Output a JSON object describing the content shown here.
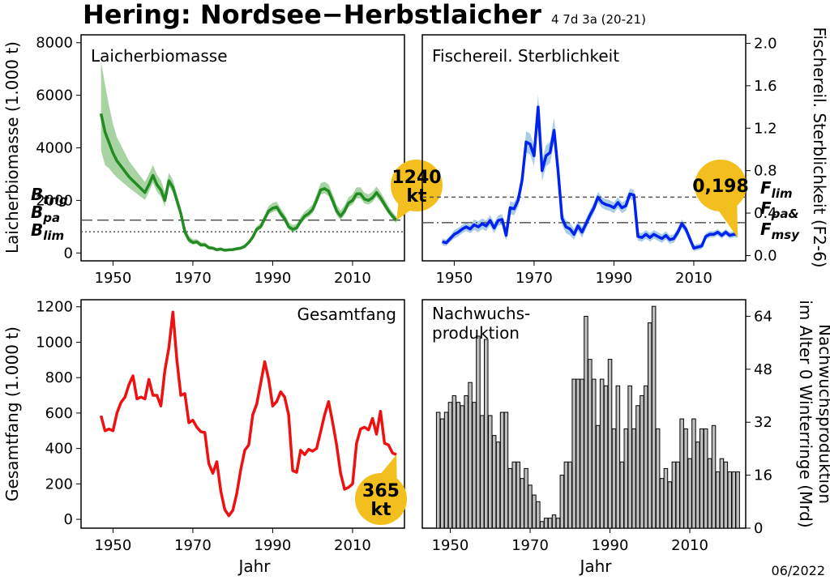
{
  "title": "Hering: Nordsee−Herbstlaicher",
  "subtitle": "4 7d 3a (20-21)",
  "date": "06/2022",
  "colors": {
    "ssb": "#228B22",
    "ssb_band": "#a8d4a3",
    "f": "#0022ee",
    "f_band": "#a9cde6",
    "catch": "#ee1111",
    "rec": "#bebebe",
    "bubble": "#f3bf1f"
  },
  "chart_data": [
    {
      "type": "area",
      "panel_label": "Laicherbiomasse",
      "ylabel": "Laicherbiomasse (1.000 t)",
      "xlim": [
        1942,
        2023
      ],
      "ylim": [
        -300,
        8300
      ],
      "xticks": [
        1950,
        1970,
        1990,
        2010
      ],
      "yticks": [
        0,
        2000,
        4000,
        6000,
        8000
      ],
      "ytick_labels": [
        "0",
        "2000",
        "4000",
        "6000",
        "8000"
      ],
      "x": [
        1947,
        1948,
        1949,
        1950,
        1951,
        1952,
        1953,
        1954,
        1955,
        1956,
        1957,
        1958,
        1959,
        1960,
        1961,
        1962,
        1963,
        1964,
        1965,
        1966,
        1967,
        1968,
        1969,
        1970,
        1971,
        1972,
        1973,
        1974,
        1975,
        1976,
        1977,
        1978,
        1979,
        1980,
        1981,
        1982,
        1983,
        1984,
        1985,
        1986,
        1987,
        1988,
        1989,
        1990,
        1991,
        1992,
        1993,
        1994,
        1995,
        1996,
        1997,
        1998,
        1999,
        2000,
        2001,
        2002,
        2003,
        2004,
        2005,
        2006,
        2007,
        2008,
        2009,
        2010,
        2011,
        2012,
        2013,
        2014,
        2015,
        2016,
        2017,
        2018,
        2019,
        2020,
        2021
      ],
      "y": [
        5300,
        4600,
        4200,
        3800,
        3500,
        3300,
        3100,
        2900,
        2750,
        2600,
        2450,
        2300,
        2600,
        2950,
        2600,
        2400,
        2000,
        2750,
        2500,
        2000,
        1500,
        800,
        500,
        400,
        420,
        300,
        310,
        200,
        180,
        120,
        150,
        100,
        120,
        130,
        160,
        180,
        250,
        400,
        600,
        900,
        1000,
        1300,
        1600,
        1700,
        1750,
        1500,
        1300,
        1000,
        900,
        950,
        1200,
        1400,
        1500,
        1650,
        2000,
        2400,
        2450,
        2350,
        2000,
        1600,
        1400,
        1600,
        1900,
        2000,
        2250,
        2250,
        2050,
        2000,
        2100,
        2300,
        2100,
        1850,
        1600,
        1400,
        1240
      ],
      "band_halfwidth": [
        2000,
        1800,
        1400,
        1100,
        900,
        800,
        700,
        600,
        550,
        500,
        450,
        400,
        400,
        400,
        380,
        360,
        330,
        300,
        280,
        250,
        220,
        180,
        150,
        120,
        110,
        100,
        90,
        80,
        70,
        60,
        60,
        50,
        50,
        50,
        60,
        70,
        80,
        90,
        100,
        120,
        140,
        160,
        180,
        200,
        200,
        190,
        180,
        170,
        160,
        160,
        170,
        180,
        190,
        200,
        220,
        250,
        260,
        260,
        250,
        230,
        210,
        210,
        220,
        230,
        250,
        250,
        240,
        230,
        230,
        230,
        220,
        200,
        180,
        160,
        140
      ],
      "reference_lines": [
        {
          "label_base": "B",
          "label_sub": "trig",
          "value": 1250,
          "style": "longdash"
        },
        {
          "label_base": "B",
          "label_sub": "pa",
          "value": 1250,
          "style": "dash"
        },
        {
          "label_base": "B",
          "label_sub": "lim",
          "value": 900,
          "style": "dot"
        }
      ],
      "callout": [
        "1240",
        "kt"
      ]
    },
    {
      "type": "area",
      "panel_label": "Fischereil. Sterblichkeit",
      "ylabel": "Fischereil. Sterblichkeit (F2-6)",
      "xlim": [
        1942,
        2023
      ],
      "ylim": [
        -0.05,
        2.08
      ],
      "xticks": [
        1950,
        1970,
        1990,
        2010
      ],
      "yticks": [
        0,
        0.4,
        0.8,
        1.2,
        1.6,
        2.0
      ],
      "ytick_labels": [
        "0.0",
        "0.4",
        "0.8",
        "1.2",
        "1.6",
        "2.0"
      ],
      "x": [
        1947,
        1948,
        1949,
        1950,
        1951,
        1952,
        1953,
        1954,
        1955,
        1956,
        1957,
        1958,
        1959,
        1960,
        1961,
        1962,
        1963,
        1964,
        1965,
        1966,
        1967,
        1968,
        1969,
        1970,
        1971,
        1972,
        1973,
        1974,
        1975,
        1976,
        1977,
        1978,
        1979,
        1980,
        1981,
        1982,
        1983,
        1984,
        1985,
        1986,
        1987,
        1988,
        1989,
        1990,
        1991,
        1992,
        1993,
        1994,
        1995,
        1996,
        1997,
        1998,
        1999,
        2000,
        2001,
        2002,
        2003,
        2004,
        2005,
        2006,
        2007,
        2008,
        2009,
        2010,
        2011,
        2012,
        2013,
        2014,
        2015,
        2016,
        2017,
        2018,
        2019,
        2020,
        2021
      ],
      "y": [
        0.13,
        0.12,
        0.16,
        0.2,
        0.22,
        0.25,
        0.27,
        0.25,
        0.29,
        0.27,
        0.3,
        0.28,
        0.33,
        0.26,
        0.33,
        0.34,
        0.19,
        0.45,
        0.44,
        0.52,
        0.71,
        1.07,
        1.05,
        0.94,
        1.4,
        0.8,
        0.94,
        0.97,
        1.18,
        0.8,
        0.35,
        0.27,
        0.25,
        0.2,
        0.28,
        0.22,
        0.3,
        0.38,
        0.45,
        0.55,
        0.5,
        0.48,
        0.47,
        0.45,
        0.5,
        0.45,
        0.47,
        0.58,
        0.57,
        0.18,
        0.17,
        0.2,
        0.17,
        0.2,
        0.18,
        0.16,
        0.19,
        0.15,
        0.16,
        0.22,
        0.3,
        0.25,
        0.16,
        0.07,
        0.08,
        0.09,
        0.18,
        0.2,
        0.2,
        0.22,
        0.19,
        0.22,
        0.19,
        0.2,
        0.198
      ],
      "band_halfwidth": [
        0.03,
        0.03,
        0.03,
        0.04,
        0.04,
        0.04,
        0.04,
        0.04,
        0.05,
        0.05,
        0.05,
        0.05,
        0.05,
        0.05,
        0.05,
        0.05,
        0.05,
        0.06,
        0.06,
        0.06,
        0.08,
        0.1,
        0.1,
        0.1,
        0.12,
        0.1,
        0.1,
        0.1,
        0.12,
        0.08,
        0.06,
        0.06,
        0.06,
        0.05,
        0.05,
        0.05,
        0.05,
        0.05,
        0.05,
        0.05,
        0.05,
        0.05,
        0.05,
        0.05,
        0.05,
        0.05,
        0.05,
        0.05,
        0.05,
        0.04,
        0.04,
        0.04,
        0.04,
        0.04,
        0.04,
        0.04,
        0.04,
        0.04,
        0.04,
        0.04,
        0.04,
        0.04,
        0.04,
        0.03,
        0.03,
        0.03,
        0.03,
        0.03,
        0.03,
        0.03,
        0.03,
        0.03,
        0.03,
        0.03,
        0.03
      ],
      "reference_lines": [
        {
          "label_base": "F",
          "label_sub": "lim",
          "value": 0.55,
          "style": "dash"
        },
        {
          "label_base": "F",
          "label_sub": "pa",
          "value": 0.55,
          "style": "dash"
        },
        {
          "label_base": "F",
          "label_sub": "msy",
          "value": 0.31,
          "style": "dashdot"
        }
      ],
      "callout": [
        "0,198"
      ]
    },
    {
      "type": "line",
      "panel_label": "Gesamtfang",
      "ylabel": "Gesamtfang (1.000 t)",
      "xlabel": "Jahr",
      "xlim": [
        1942,
        2023
      ],
      "ylim": [
        -50,
        1240
      ],
      "xticks": [
        1950,
        1970,
        1990,
        2010
      ],
      "yticks": [
        0,
        200,
        400,
        600,
        800,
        1000,
        1200
      ],
      "ytick_labels": [
        "0",
        "200",
        "400",
        "600",
        "800",
        "1000",
        "1200"
      ],
      "x": [
        1947,
        1948,
        1949,
        1950,
        1951,
        1952,
        1953,
        1954,
        1955,
        1956,
        1957,
        1958,
        1959,
        1960,
        1961,
        1962,
        1963,
        1964,
        1965,
        1966,
        1967,
        1968,
        1969,
        1970,
        1971,
        1972,
        1973,
        1974,
        1975,
        1976,
        1977,
        1978,
        1979,
        1980,
        1981,
        1982,
        1983,
        1984,
        1985,
        1986,
        1987,
        1988,
        1989,
        1990,
        1991,
        1992,
        1993,
        1994,
        1995,
        1996,
        1997,
        1998,
        1999,
        2000,
        2001,
        2002,
        2003,
        2004,
        2005,
        2006,
        2007,
        2008,
        2009,
        2010,
        2011,
        2012,
        2013,
        2014,
        2015,
        2016,
        2017,
        2018,
        2019,
        2020,
        2021
      ],
      "y": [
        585,
        500,
        510,
        500,
        600,
        660,
        690,
        760,
        810,
        680,
        690,
        680,
        790,
        700,
        700,
        640,
        840,
        970,
        1170,
        900,
        700,
        710,
        545,
        560,
        520,
        495,
        490,
        315,
        260,
        325,
        160,
        55,
        20,
        50,
        145,
        280,
        390,
        420,
        590,
        650,
        770,
        890,
        790,
        640,
        665,
        720,
        690,
        590,
        275,
        265,
        390,
        365,
        395,
        385,
        400,
        495,
        590,
        665,
        550,
        420,
        260,
        170,
        180,
        200,
        430,
        510,
        520,
        505,
        570,
        480,
        610,
        430,
        420,
        375,
        365
      ],
      "callout": [
        "365",
        "kt"
      ]
    },
    {
      "type": "bar",
      "panel_label": [
        "Nachwuchs-",
        "produktion"
      ],
      "ylabel": [
        "Nachwuchsproduktion",
        "im Alter 0 Winterringe (Mrd)"
      ],
      "xlabel": "Jahr",
      "xlim": [
        1943,
        2024
      ],
      "ylim": [
        0,
        69
      ],
      "xticks": [
        1950,
        1970,
        1990,
        2010
      ],
      "yticks": [
        0,
        16,
        32,
        48,
        64
      ],
      "ytick_labels": [
        "0",
        "16",
        "32",
        "48",
        "64"
      ],
      "x": [
        1947,
        1948,
        1949,
        1950,
        1951,
        1952,
        1953,
        1954,
        1955,
        1956,
        1957,
        1958,
        1959,
        1960,
        1961,
        1962,
        1963,
        1964,
        1965,
        1966,
        1967,
        1968,
        1969,
        1970,
        1971,
        1972,
        1973,
        1974,
        1975,
        1976,
        1977,
        1978,
        1979,
        1980,
        1981,
        1982,
        1983,
        1984,
        1985,
        1986,
        1987,
        1988,
        1989,
        1990,
        1991,
        1992,
        1993,
        1994,
        1995,
        1996,
        1997,
        1998,
        1999,
        2000,
        2001,
        2002,
        2003,
        2004,
        2005,
        2006,
        2007,
        2008,
        2009,
        2010,
        2011,
        2012,
        2013,
        2014,
        2015,
        2016,
        2017,
        2018,
        2019,
        2020,
        2021,
        2022
      ],
      "values": [
        35,
        33,
        35,
        38,
        40,
        38,
        37,
        40,
        44,
        38,
        58,
        34,
        57,
        34,
        28,
        26,
        35,
        35,
        18,
        20,
        20,
        15,
        18,
        13,
        10,
        8,
        2,
        3,
        3,
        4,
        3,
        16,
        20,
        20,
        45,
        45,
        45,
        64,
        51,
        45,
        31,
        45,
        43,
        51,
        30,
        43,
        20,
        30,
        43,
        30,
        37,
        40,
        43,
        62,
        67,
        30,
        15,
        18,
        14,
        20,
        20,
        33,
        30,
        21,
        33,
        26,
        30,
        30,
        21,
        31,
        17,
        21,
        20,
        17,
        17,
        17
      ]
    }
  ]
}
